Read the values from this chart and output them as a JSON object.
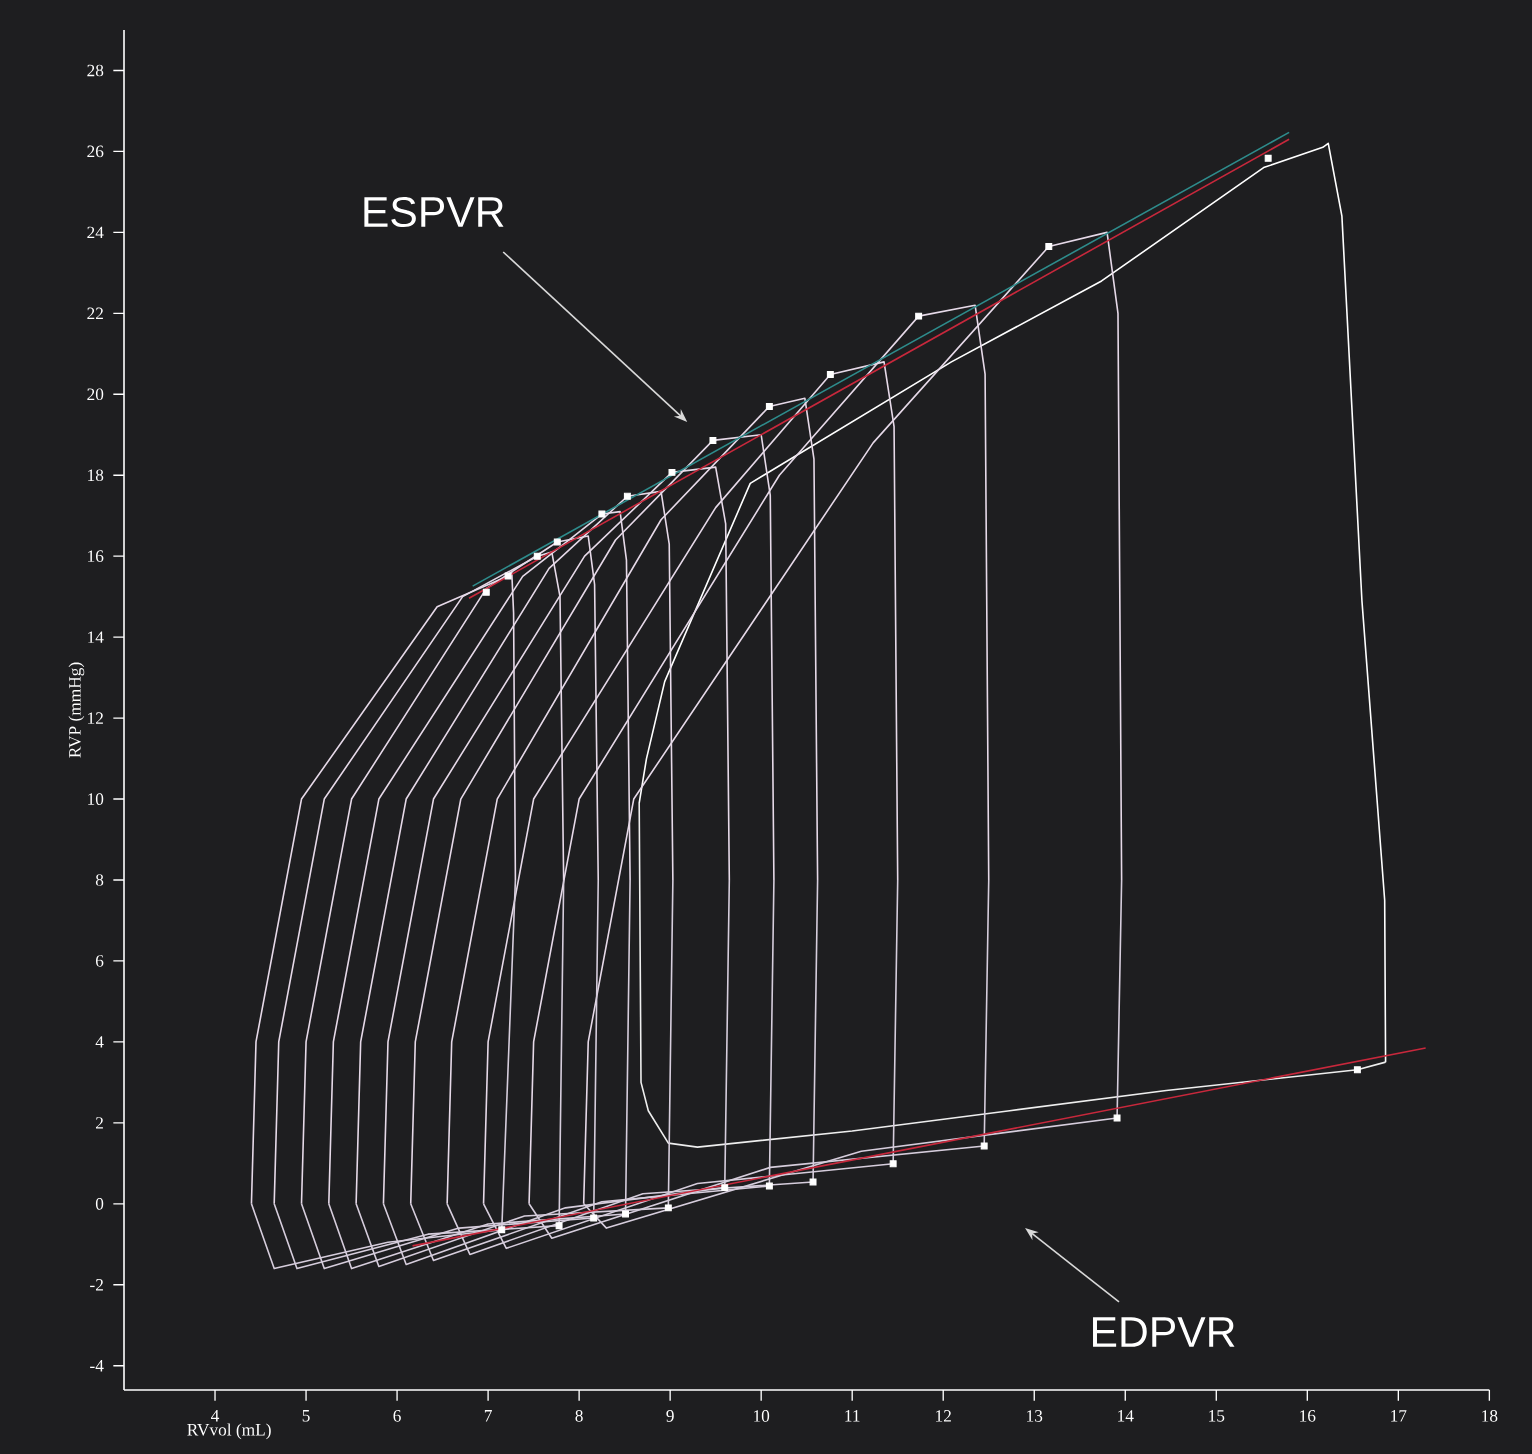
{
  "chart_data": {
    "type": "line",
    "xlabel": "RVvol (mL)",
    "ylabel": "RVP (mmHg)",
    "xlim": [
      3,
      18
    ],
    "xticks": [
      4,
      5,
      6,
      7,
      8,
      9,
      10,
      11,
      12,
      13,
      14,
      15,
      16,
      17,
      18
    ],
    "ylim": [
      -4.6,
      29
    ],
    "yticks": [
      -4,
      -2,
      0,
      2,
      4,
      6,
      8,
      10,
      12,
      14,
      16,
      18,
      20,
      22,
      24,
      26,
      28
    ],
    "grid": false,
    "marker": "none",
    "annotations": [
      "ESPVR",
      "EDPVR"
    ],
    "series": [
      {
        "color": "#ffffff",
        "x": [
          16.86,
          16.85,
          16.6,
          16.38,
          16.23,
          16.17,
          15.52,
          13.74,
          12.09,
          9.88,
          8.94,
          8.74,
          8.66
        ],
        "values": [
          3.5,
          7.5,
          14.9,
          24.4,
          26.2,
          26.1,
          25.6,
          22.8,
          20.8,
          17.8,
          12.9,
          11,
          9.9
        ]
      },
      {
        "color": "#eeeeee",
        "x": [
          8.66,
          8.68,
          8.76,
          8.98,
          9.3,
          11.0,
          12.73,
          14.45,
          16.55,
          16.86
        ],
        "values": [
          9.9,
          3.0,
          2.3,
          1.5,
          1.4,
          1.8,
          2.3,
          2.8,
          3.31,
          3.5
        ]
      },
      {
        "color": "#e6d9e8",
        "x": [
          13.96,
          13.92,
          13.8,
          13.16,
          11.23,
          8.6,
          8.1,
          8.05
        ],
        "values": [
          8,
          22,
          24.0,
          23.65,
          18.8,
          10,
          4,
          0
        ]
      },
      {
        "color": "#d6cddc",
        "x": [
          8.05,
          8.3,
          11.1,
          13.91,
          13.96
        ],
        "values": [
          0,
          -0.6,
          1.3,
          2.12,
          8
        ]
      },
      {
        "color": "#e6d9e8",
        "x": [
          12.5,
          12.46,
          12.35,
          11.73,
          10.2,
          8.0,
          7.5,
          7.45
        ],
        "values": [
          8,
          20.5,
          22.2,
          21.93,
          18.0,
          10,
          4,
          0
        ]
      },
      {
        "color": "#d6cddc",
        "x": [
          7.45,
          7.7,
          10.1,
          12.45,
          12.5
        ],
        "values": [
          0,
          -0.85,
          0.9,
          1.43,
          8
        ]
      },
      {
        "color": "#e6d9e8",
        "x": [
          11.5,
          11.46,
          11.35,
          10.76,
          9.5,
          7.5,
          7.0,
          6.95
        ],
        "values": [
          8,
          19.2,
          20.8,
          20.49,
          17.2,
          10,
          4,
          0
        ]
      },
      {
        "color": "#d6cddc",
        "x": [
          6.95,
          7.2,
          9.3,
          11.45,
          11.5
        ],
        "values": [
          0,
          -1.1,
          0.5,
          0.99,
          8
        ]
      },
      {
        "color": "#e6d9e8",
        "x": [
          10.62,
          10.58,
          10.48,
          10.09,
          8.9,
          7.1,
          6.6,
          6.55
        ],
        "values": [
          8,
          18.4,
          19.9,
          19.7,
          16.9,
          10,
          4,
          0
        ]
      },
      {
        "color": "#d6cddc",
        "x": [
          6.55,
          6.8,
          8.7,
          10.57,
          10.62
        ],
        "values": [
          0,
          -1.25,
          0.25,
          0.54,
          8
        ]
      },
      {
        "color": "#e6d9e8",
        "x": [
          10.14,
          10.1,
          10.0,
          9.47,
          8.4,
          6.7,
          6.2,
          6.15
        ],
        "values": [
          8,
          17.5,
          19.0,
          18.86,
          16.4,
          10,
          4,
          0
        ]
      },
      {
        "color": "#d6cddc",
        "x": [
          6.15,
          6.4,
          8.25,
          10.09,
          10.14
        ],
        "values": [
          0,
          -1.4,
          0.05,
          0.44,
          8
        ]
      },
      {
        "color": "#e6d9e8",
        "x": [
          9.65,
          9.61,
          9.5,
          9.02,
          8.06,
          6.4,
          5.9,
          5.85
        ],
        "values": [
          8,
          16.8,
          18.2,
          18.07,
          16.0,
          10,
          4,
          0
        ]
      },
      {
        "color": "#d6cddc",
        "x": [
          5.85,
          6.1,
          7.85,
          9.6,
          9.65
        ],
        "values": [
          0,
          -1.5,
          -0.1,
          0.4,
          8
        ]
      },
      {
        "color": "#e6d9e8",
        "x": [
          9.03,
          8.99,
          8.9,
          8.53,
          7.67,
          6.1,
          5.6,
          5.55
        ],
        "values": [
          8,
          16.3,
          17.6,
          17.48,
          15.7,
          10,
          4,
          0
        ]
      },
      {
        "color": "#d6cddc",
        "x": [
          5.55,
          5.8,
          7.4,
          8.98,
          9.03
        ],
        "values": [
          0,
          -1.55,
          -0.3,
          -0.1,
          8
        ]
      },
      {
        "color": "#e6d9e8",
        "x": [
          8.56,
          8.52,
          8.45,
          8.25,
          7.38,
          5.8,
          5.3,
          5.25
        ],
        "values": [
          8,
          15.9,
          17.1,
          17.04,
          15.5,
          10,
          4,
          0
        ]
      },
      {
        "color": "#d6cddc",
        "x": [
          5.25,
          5.5,
          7.0,
          8.51,
          8.56
        ],
        "values": [
          0,
          -1.6,
          -0.5,
          -0.25,
          8
        ]
      },
      {
        "color": "#e6d9e8",
        "x": [
          8.21,
          8.17,
          8.1,
          7.76,
          6.98,
          5.5,
          5.0,
          4.95
        ],
        "values": [
          8,
          15.3,
          16.5,
          16.35,
          15.2,
          10,
          4,
          0
        ]
      },
      {
        "color": "#d6cddc",
        "x": [
          4.95,
          5.2,
          6.68,
          8.16,
          8.21
        ],
        "values": [
          0,
          -1.6,
          -0.6,
          -0.35,
          8
        ]
      },
      {
        "color": "#e6d9e8",
        "x": [
          7.83,
          7.79,
          7.7,
          7.54,
          6.72,
          5.2,
          4.7,
          4.65
        ],
        "values": [
          8,
          15.0,
          16.1,
          16.0,
          15.0,
          10,
          4,
          0
        ]
      },
      {
        "color": "#d6cddc",
        "x": [
          4.65,
          4.9,
          6.34,
          7.78,
          7.83
        ],
        "values": [
          0,
          -1.6,
          -0.75,
          -0.54,
          8
        ]
      },
      {
        "color": "#e6d9e8",
        "x": [
          7.3,
          7.28,
          7.26,
          7.22,
          6.44,
          4.95,
          4.45,
          4.4
        ],
        "values": [
          8,
          14.6,
          15.6,
          15.51,
          14.75,
          10,
          4,
          0
        ]
      },
      {
        "color": "#d6cddc",
        "x": [
          4.4,
          4.65,
          5.9,
          7.15,
          7.3
        ],
        "values": [
          0,
          -1.6,
          -0.95,
          -0.64,
          8
        ]
      },
      {
        "color": "#2e8c8c",
        "x": [
          6.83,
          15.8
        ],
        "values": [
          15.26,
          26.47
        ]
      },
      {
        "color": "#c8283c",
        "x": [
          6.79,
          15.8
        ],
        "values": [
          14.96,
          26.3
        ]
      },
      {
        "color": "#c8283c",
        "x": [
          6.17,
          17.3
        ],
        "values": [
          -1.04,
          3.85
        ]
      },
      {
        "type": "scatter",
        "marker": "square",
        "color": "#ffffff",
        "x": [
          15.57,
          13.16,
          11.73,
          10.76,
          10.09,
          9.47,
          9.02,
          8.53,
          8.25,
          7.76,
          7.54,
          7.22,
          6.98
        ],
        "values": [
          25.83,
          23.65,
          21.93,
          20.49,
          19.7,
          18.86,
          18.07,
          17.48,
          17.04,
          16.35,
          16.0,
          15.51,
          15.11
        ]
      },
      {
        "type": "scatter",
        "marker": "square",
        "color": "#ffffff",
        "x": [
          16.55,
          13.91,
          12.45,
          11.45,
          10.57,
          10.09,
          9.6,
          8.98,
          8.51,
          8.16,
          7.78,
          7.15
        ],
        "values": [
          3.31,
          2.12,
          1.43,
          0.99,
          0.54,
          0.44,
          0.4,
          -0.1,
          -0.25,
          -0.35,
          -0.54,
          -0.64
        ]
      }
    ]
  }
}
